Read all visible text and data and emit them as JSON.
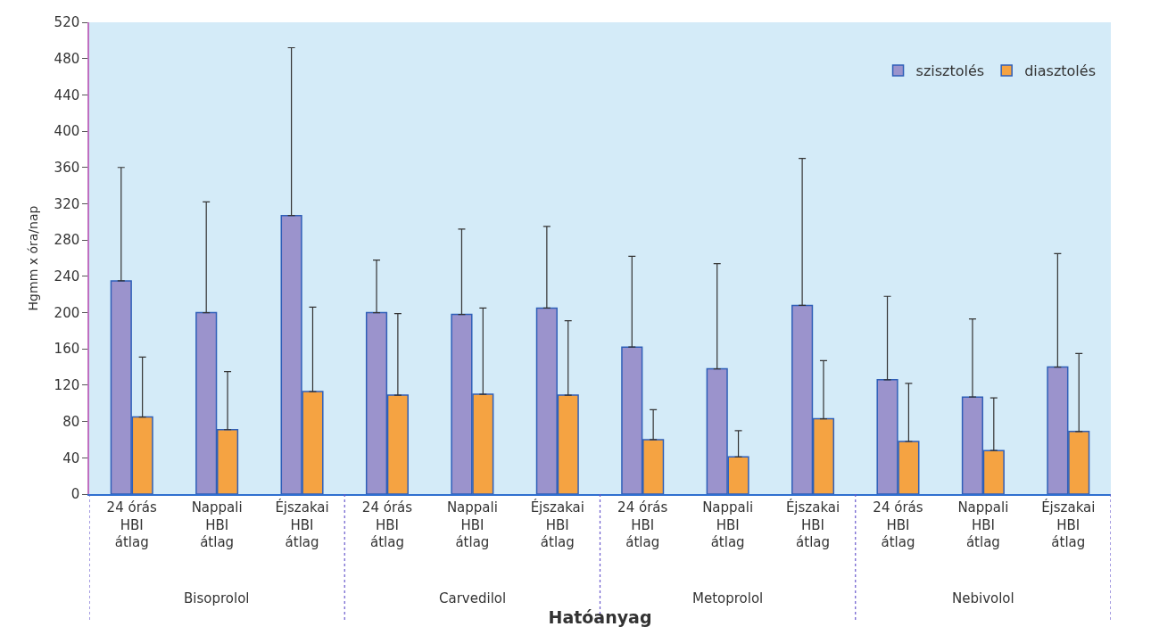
{
  "chart_data": {
    "type": "bar",
    "xlabel": "Hatóanyag",
    "ylabel": "Hgmm x óra/nap",
    "categories": [
      "24 órás\nHBI\nátlag",
      "Nappali\nHBI\nátlag",
      "Éjszakai\nHBI\nátlag",
      "24 órás\nHBI\nátlag",
      "Nappali\nHBI\nátlag",
      "Éjszakai\nHBI\nátlag",
      "24 órás\nHBI\nátlag",
      "Nappali\nHBI\nátlag",
      "Éjszakai\nHBI\nátlag",
      "24 órás\nHBI\nátlag",
      "Nappali\nHBI\nátlag",
      "Éjszakai\nHBI\nátlag"
    ],
    "series": [
      {
        "name": "szisztolés",
        "color": "#9b93cc",
        "values": [
          235,
          200,
          307,
          200,
          198,
          205,
          162,
          138,
          208,
          126,
          107,
          140
        ],
        "errors": [
          [
            235,
            360
          ],
          [
            200,
            322
          ],
          [
            307,
            492
          ],
          [
            200,
            258
          ],
          [
            198,
            292
          ],
          [
            205,
            295
          ],
          [
            162,
            262
          ],
          [
            138,
            254
          ],
          [
            208,
            370
          ],
          [
            126,
            218
          ],
          [
            107,
            193
          ],
          [
            140,
            265
          ]
        ]
      },
      {
        "name": "diasztolés",
        "color": "#f5a342",
        "values": [
          85,
          71,
          113,
          109,
          110,
          109,
          60,
          41,
          83,
          58,
          48,
          69
        ],
        "errors": [
          [
            85,
            151
          ],
          [
            71,
            135
          ],
          [
            113,
            206
          ],
          [
            109,
            199
          ],
          [
            110,
            205
          ],
          [
            109,
            191
          ],
          [
            60,
            93
          ],
          [
            41,
            70
          ],
          [
            83,
            147
          ],
          [
            58,
            122
          ],
          [
            48,
            106
          ],
          [
            69,
            155
          ]
        ]
      }
    ],
    "annotations": [
      "Bisoprolol",
      "Carvedilol",
      "Metoprolol",
      "Nebivolol"
    ],
    "ylim": [
      0,
      520
    ],
    "yticks": [
      0,
      40,
      80,
      120,
      160,
      200,
      240,
      280,
      320,
      360,
      400,
      440,
      480,
      520
    ],
    "grid": false,
    "legend": "top right"
  }
}
